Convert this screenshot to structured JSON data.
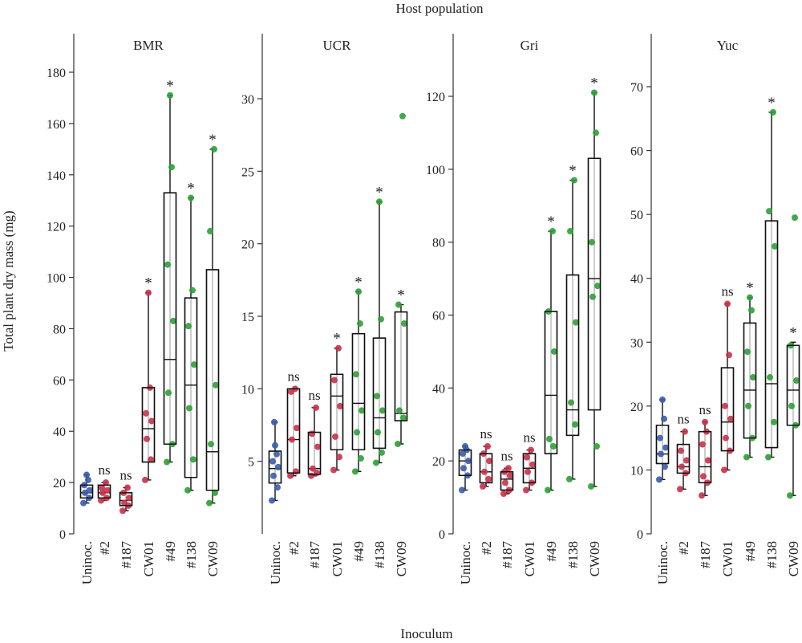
{
  "figure": {
    "title": "Host population",
    "xlabel": "Inoculum",
    "ylabel": "Total plant dry mass (mg)"
  },
  "colors": {
    "uninoc": "#3a5ca8",
    "isolate": "#c8324a",
    "cw": "#2f9e35",
    "box": "#111111",
    "axis": "#333333"
  },
  "chart_data": [
    {
      "type": "box",
      "title": "BMR",
      "categories": [
        "Uninoc.",
        "#2",
        "#187",
        "CW01",
        "#49",
        "#138",
        "CW09"
      ],
      "ylim": [
        0,
        190
      ],
      "yticks": [
        0,
        20,
        40,
        60,
        80,
        100,
        120,
        140,
        160,
        180
      ],
      "sig": [
        "",
        "ns",
        "ns",
        "*",
        "*",
        "*",
        "*"
      ],
      "groups": [
        "uninoc",
        "isolate",
        "isolate",
        "isolate",
        "cw",
        "cw",
        "cw"
      ],
      "boxes": [
        {
          "min": 12,
          "q1": 14,
          "med": 16,
          "q3": 19,
          "max": 23
        },
        {
          "min": 13,
          "q1": 14,
          "med": 16,
          "q3": 19,
          "max": 20
        },
        {
          "min": 9,
          "q1": 11,
          "med": 13,
          "q3": 16,
          "max": 18
        },
        {
          "min": 21,
          "q1": 28,
          "med": 41,
          "q3": 57,
          "max": 94
        },
        {
          "min": 28,
          "q1": 35,
          "med": 68,
          "q3": 133,
          "max": 171
        },
        {
          "min": 17,
          "q1": 22,
          "med": 58,
          "q3": 92,
          "max": 131
        },
        {
          "min": 12,
          "q1": 17,
          "med": 32,
          "q3": 103,
          "max": 150
        }
      ],
      "points": [
        [
          12,
          14,
          16,
          17,
          19,
          21,
          23
        ],
        [
          13,
          14,
          16,
          17,
          18,
          20
        ],
        [
          9,
          11,
          12,
          14,
          16,
          18
        ],
        [
          21,
          29,
          37,
          44,
          47,
          57,
          94
        ],
        [
          28,
          35,
          55,
          83,
          105,
          143,
          171
        ],
        [
          17,
          29,
          49,
          66,
          81,
          95,
          131
        ],
        [
          12,
          16,
          35,
          58,
          118,
          150
        ]
      ]
    },
    {
      "type": "box",
      "title": "UCR",
      "categories": [
        "Uninoc.",
        "#2",
        "#187",
        "CW01",
        "#49",
        "#138",
        "CW09"
      ],
      "ylim": [
        0,
        34
      ],
      "yticks": [
        5,
        10,
        15,
        20,
        25,
        30
      ],
      "sig": [
        "",
        "ns",
        "ns",
        "*",
        "*",
        "*",
        "*"
      ],
      "groups": [
        "uninoc",
        "isolate",
        "isolate",
        "isolate",
        "cw",
        "cw",
        "cw"
      ],
      "boxes": [
        {
          "min": 2.3,
          "q1": 3.5,
          "med": 4.5,
          "q3": 5.7,
          "max": 7.7
        },
        {
          "min": 4,
          "q1": 4.2,
          "med": 6.5,
          "q3": 10,
          "max": 10
        },
        {
          "min": 4,
          "q1": 4.1,
          "med": 4.5,
          "q3": 7,
          "max": 8.7
        },
        {
          "min": 4.4,
          "q1": 5.8,
          "med": 9.5,
          "q3": 11,
          "max": 12.8
        },
        {
          "min": 4.3,
          "q1": 5.8,
          "med": 9,
          "q3": 13.8,
          "max": 16.7
        },
        {
          "min": 4.9,
          "q1": 5.9,
          "med": 8,
          "q3": 13.5,
          "max": 22.9
        },
        {
          "min": 6.2,
          "q1": 7.8,
          "med": 8.3,
          "q3": 15.3,
          "max": 15.8
        }
      ],
      "points": [
        [
          2.3,
          3.2,
          4,
          4.6,
          5,
          5.5,
          6.1,
          7.7
        ],
        [
          4,
          4.3,
          6.5,
          7.3,
          9.8,
          10
        ],
        [
          4,
          4.2,
          4.5,
          6,
          6.9,
          8.7
        ],
        [
          4.4,
          5.3,
          6.7,
          8.8,
          10.6,
          12.8
        ],
        [
          4.3,
          5.2,
          7,
          8.5,
          11,
          14.5,
          16.7
        ],
        [
          4.9,
          5.6,
          7,
          8.5,
          9.5,
          14.8,
          22.9
        ],
        [
          6.2,
          8,
          8.5,
          14.5,
          15.8,
          28.8
        ]
      ]
    },
    {
      "type": "box",
      "title": "Gri",
      "categories": [
        "Uninoc.",
        "#2",
        "#187",
        "CW01",
        "#49",
        "#138",
        "CW09"
      ],
      "ylim": [
        0,
        135
      ],
      "yticks": [
        0,
        20,
        40,
        60,
        80,
        100,
        120
      ],
      "sig": [
        "",
        "ns",
        "ns",
        "ns",
        "*",
        "*",
        "*"
      ],
      "groups": [
        "uninoc",
        "isolate",
        "isolate",
        "isolate",
        "cw",
        "cw",
        "cw"
      ],
      "boxes": [
        {
          "min": 12,
          "q1": 16,
          "med": 20,
          "q3": 23,
          "max": 24
        },
        {
          "min": 13,
          "q1": 14,
          "med": 17,
          "q3": 22,
          "max": 24
        },
        {
          "min": 11,
          "q1": 12,
          "med": 15,
          "q3": 17,
          "max": 18
        },
        {
          "min": 12,
          "q1": 14,
          "med": 18,
          "q3": 22,
          "max": 23
        },
        {
          "min": 12,
          "q1": 22,
          "med": 38,
          "q3": 61,
          "max": 83
        },
        {
          "min": 15,
          "q1": 27,
          "med": 34,
          "q3": 71,
          "max": 97
        },
        {
          "min": 13,
          "q1": 34,
          "med": 70,
          "q3": 103,
          "max": 121
        }
      ],
      "points": [
        [
          12,
          16,
          18,
          20,
          22,
          23,
          24
        ],
        [
          13,
          15,
          17,
          20,
          22,
          24
        ],
        [
          11,
          12,
          14,
          16,
          17,
          18
        ],
        [
          12,
          14,
          17,
          19,
          21,
          23
        ],
        [
          12,
          24,
          26,
          50,
          61,
          83
        ],
        [
          15,
          30,
          36,
          58,
          83,
          97
        ],
        [
          13,
          24,
          65,
          68,
          80,
          110,
          121
        ]
      ]
    },
    {
      "type": "box",
      "title": "Yuc",
      "categories": [
        "Uninoc.",
        "#2",
        "#187",
        "CW01",
        "#49",
        "#138",
        "CW09"
      ],
      "ylim": [
        0,
        78
      ],
      "yticks": [
        0,
        10,
        20,
        30,
        40,
        50,
        60,
        70
      ],
      "sig": [
        "",
        "ns",
        "ns",
        "ns",
        "*",
        "*",
        "*"
      ],
      "groups": [
        "uninoc",
        "isolate",
        "isolate",
        "isolate",
        "cw",
        "cw",
        "cw"
      ],
      "boxes": [
        {
          "min": 8.5,
          "q1": 11,
          "med": 12.5,
          "q3": 17,
          "max": 21
        },
        {
          "min": 7,
          "q1": 9.5,
          "med": 10.5,
          "q3": 14,
          "max": 16
        },
        {
          "min": 6,
          "q1": 8,
          "med": 10.5,
          "q3": 16,
          "max": 17.5
        },
        {
          "min": 10,
          "q1": 13,
          "med": 17.5,
          "q3": 26,
          "max": 36
        },
        {
          "min": 12,
          "q1": 15,
          "med": 22.5,
          "q3": 33,
          "max": 37
        },
        {
          "min": 12,
          "q1": 13.5,
          "med": 23.5,
          "q3": 49,
          "max": 66
        },
        {
          "min": 6,
          "q1": 17,
          "med": 22.5,
          "q3": 29.5,
          "max": 30
        }
      ],
      "points": [
        [
          8.5,
          10.5,
          12.5,
          13.5,
          15,
          18,
          21
        ],
        [
          7,
          9.5,
          10.5,
          11.5,
          13,
          16
        ],
        [
          6,
          8,
          9,
          11.5,
          14,
          16,
          17.5
        ],
        [
          10,
          13,
          15,
          18,
          20,
          28,
          36
        ],
        [
          12,
          15,
          20,
          24.5,
          28.5,
          35,
          37
        ],
        [
          12,
          17.5,
          24.5,
          45,
          50.5,
          66
        ],
        [
          6,
          17,
          20,
          24,
          29.5,
          49.5
        ]
      ]
    }
  ]
}
